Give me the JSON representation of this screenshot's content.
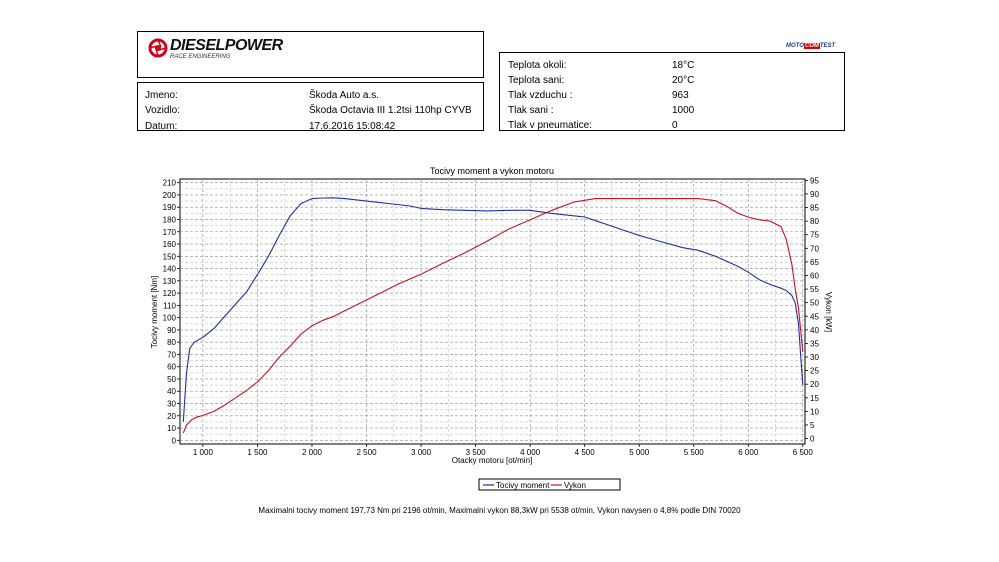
{
  "brand": {
    "logo_text": "DIESELPOWER",
    "logo_sub": "RACE ENGINEERING",
    "moto_a": "MOTO",
    "moto_b": "COM",
    "moto_c": "TEST",
    "accent_color": "#d0021b"
  },
  "info": {
    "name_label": "Jmeno:",
    "name_value": "Škoda Auto a.s.",
    "vehicle_label": "Vozidlo:",
    "vehicle_value": "Škoda Octavia III 1.2tsi 110hp CYVB",
    "date_label": "Datum:",
    "date_value": "17.6.2016 15:08:42"
  },
  "conditions": {
    "ambient_temp_label": "Teplota okoli:",
    "ambient_temp_value": "18°C",
    "intake_temp_label": "Teplota sani:",
    "intake_temp_value": "20°C",
    "air_pressure_label": "Tlak vzduchu :",
    "air_pressure_value": "963",
    "intake_pressure_label": "Tlak sani :",
    "intake_pressure_value": "1000",
    "tire_pressure_label": "Tlak v pneumatice:",
    "tire_pressure_value": "0"
  },
  "chart_data": {
    "type": "line",
    "title": "Tocivy moment a vykon motoru",
    "xlabel": "Otacky motoru [ot/min]",
    "ylabel": "Tocivy moment [Nm]",
    "y2label": "Vykon [kW]",
    "xlim": [
      790,
      6520
    ],
    "ylim": [
      -3,
      213
    ],
    "y2lim": [
      -2,
      95.5
    ],
    "x_ticks": [
      1000,
      1500,
      2000,
      2500,
      3000,
      3500,
      4000,
      4500,
      5000,
      5500,
      6000,
      6500
    ],
    "x_tick_labels": [
      "1 000",
      "1 500",
      "2 000",
      "2 500",
      "3 000",
      "3 500",
      "4 000",
      "4 500",
      "5 000",
      "5 500",
      "6 000",
      "6 500"
    ],
    "y_ticks": [
      0,
      10,
      20,
      30,
      40,
      50,
      60,
      70,
      80,
      90,
      100,
      110,
      120,
      130,
      140,
      150,
      160,
      170,
      180,
      190,
      200,
      210
    ],
    "y_tick_labels": [
      "0",
      "10",
      "20",
      "30",
      "40",
      "50",
      "60",
      "70",
      "80",
      "90",
      "100",
      "110",
      "120",
      "130",
      "140",
      "150",
      "160",
      "170",
      "180",
      "190",
      "200",
      "210"
    ],
    "y2_ticks": [
      0,
      5,
      10,
      15,
      20,
      25,
      30,
      35,
      40,
      45,
      50,
      55,
      60,
      65,
      70,
      75,
      80,
      85,
      90,
      95
    ],
    "y2_tick_labels": [
      "0",
      "5",
      "10",
      "15",
      "20",
      "25",
      "30",
      "35",
      "40",
      "45",
      "50",
      "55",
      "60",
      "65",
      "70",
      "75",
      "80",
      "85",
      "90",
      "95"
    ],
    "grid": true,
    "legend_position": "bottom",
    "series": [
      {
        "name": "Tocivy moment",
        "axis": "left",
        "color": "#1f2fa8",
        "x": [
          820,
          850,
          880,
          920,
          1000,
          1100,
          1200,
          1300,
          1400,
          1500,
          1600,
          1700,
          1800,
          1900,
          2000,
          2100,
          2196,
          2300,
          2500,
          2700,
          2900,
          3000,
          3200,
          3400,
          3600,
          3800,
          4000,
          4200,
          4400,
          4500,
          4600,
          4700,
          4800,
          5000,
          5200,
          5400,
          5538,
          5700,
          5900,
          6000,
          6100,
          6200,
          6300,
          6350,
          6400,
          6430,
          6460,
          6480,
          6500
        ],
        "y": [
          15,
          55,
          75,
          80,
          84,
          91,
          101,
          111,
          121,
          135,
          150,
          167,
          183,
          193,
          197,
          197.5,
          197.7,
          197,
          195,
          193,
          191,
          189,
          188,
          187.5,
          187,
          187.5,
          187.5,
          185,
          183,
          182,
          179,
          176,
          173,
          167,
          162,
          157,
          155,
          150,
          142,
          137,
          131,
          127,
          124,
          122,
          118,
          112,
          95,
          70,
          45
        ]
      },
      {
        "name": "Vykon",
        "axis": "right",
        "color": "#c8141e",
        "x": [
          820,
          850,
          900,
          950,
          1000,
          1100,
          1200,
          1300,
          1400,
          1500,
          1600,
          1700,
          1800,
          1900,
          2000,
          2100,
          2200,
          2400,
          2600,
          2800,
          3000,
          3200,
          3400,
          3600,
          3800,
          4000,
          4200,
          4400,
          4600,
          4800,
          5000,
          5200,
          5400,
          5538,
          5700,
          5800,
          5900,
          6000,
          6100,
          6200,
          6300,
          6350,
          6400,
          6430,
          6460,
          6480,
          6500
        ],
        "y": [
          2,
          5,
          7,
          8,
          8.5,
          10,
          12.3,
          15,
          17.7,
          20.8,
          25,
          30,
          34,
          38.5,
          41.5,
          43.5,
          45,
          49,
          53,
          57,
          60.5,
          64.5,
          68.3,
          72.5,
          77,
          80.5,
          84,
          87,
          88.3,
          88.3,
          88.3,
          88.3,
          88.3,
          88.3,
          87.5,
          85.5,
          83,
          81.5,
          80.5,
          80,
          78,
          73,
          64,
          55,
          48,
          40,
          32
        ]
      }
    ],
    "summary": "Maximalni tocivy moment 197,73 Nm pri 2196 ot/min,  Maximalni vykon 88,3kW pri 5538 ot/min,  Vykon navysen o 4,8% podle DIN 70020"
  }
}
